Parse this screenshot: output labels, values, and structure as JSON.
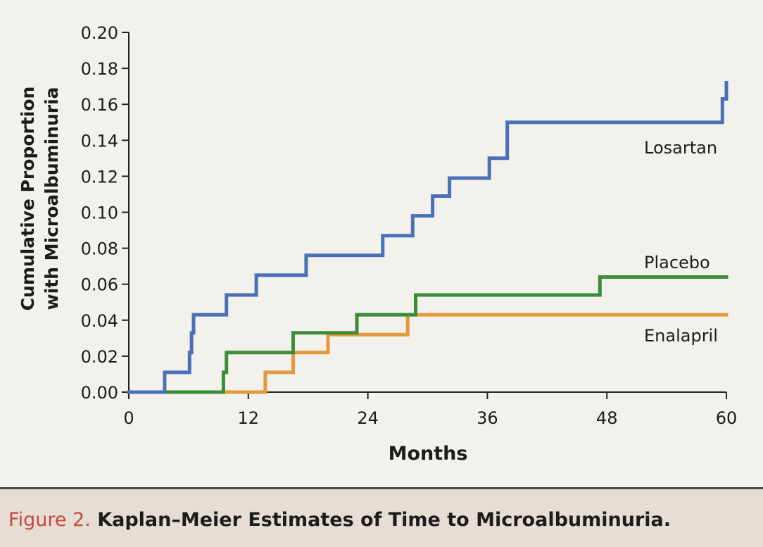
{
  "chart_data": {
    "type": "line",
    "style": "step",
    "title": "",
    "xlabel": "Months",
    "ylabel": "Cumulative Proportion with Microalbuminuria",
    "ylabel_lines": [
      "Cumulative Proportion",
      "with Microalbuminuria"
    ],
    "xlim": [
      0,
      60
    ],
    "ylim": [
      0,
      0.2
    ],
    "x_ticks": [
      0,
      12,
      24,
      36,
      48,
      60
    ],
    "y_ticks": [
      0.0,
      0.02,
      0.04,
      0.06,
      0.08,
      0.1,
      0.12,
      0.14,
      0.16,
      0.18,
      0.2
    ],
    "x_tick_labels": [
      "0",
      "12",
      "24",
      "36",
      "48",
      "60"
    ],
    "y_tick_labels": [
      "0.00",
      "0.02",
      "0.04",
      "0.06",
      "0.08",
      "0.10",
      "0.12",
      "0.14",
      "0.16",
      "0.18",
      "0.20"
    ],
    "grid": false,
    "legend": "inline labels at right end of lines",
    "series": [
      {
        "name": "Losartan",
        "color": "#4a70b8",
        "x": [
          0,
          3.6,
          6.1,
          6.3,
          6.5,
          9.8,
          12.8,
          17.8,
          25.5,
          28.5,
          30.5,
          32.2,
          36.2,
          38.0,
          59.4,
          59.6,
          60.0
        ],
        "y": [
          0,
          0.011,
          0.022,
          0.033,
          0.043,
          0.054,
          0.065,
          0.076,
          0.087,
          0.098,
          0.109,
          0.119,
          0.13,
          0.15,
          0.15,
          0.163,
          0.172
        ]
      },
      {
        "name": "Placebo",
        "color": "#3d8c3a",
        "x": [
          0,
          9.5,
          9.8,
          16.5,
          22.9,
          28.8,
          47.3,
          60.0
        ],
        "y": [
          0,
          0.011,
          0.022,
          0.033,
          0.043,
          0.054,
          0.064,
          0.064
        ]
      },
      {
        "name": "Enalapril",
        "color": "#e29a3c",
        "x": [
          0,
          13.7,
          16.5,
          18.4,
          20.0,
          23.0,
          28.0,
          60.0
        ],
        "y": [
          0,
          0.011,
          0.022,
          0.022,
          0.032,
          0.032,
          0.043,
          0.043
        ]
      }
    ]
  },
  "caption": {
    "label": "Figure 2.",
    "text": "Kaplan–Meier Estimates of Time to Microalbuminuria."
  }
}
